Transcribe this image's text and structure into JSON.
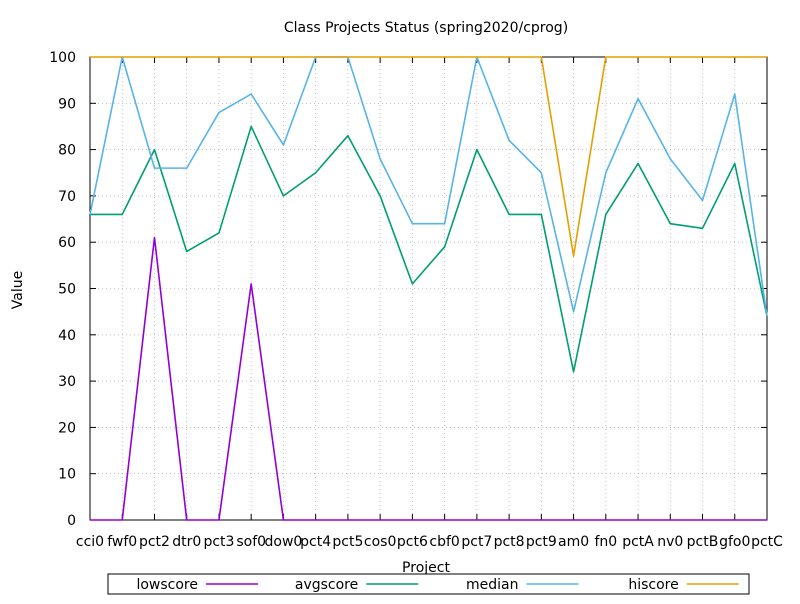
{
  "chart_data": {
    "type": "line",
    "title": "Class Projects Status (spring2020/cprog)",
    "xlabel": "Project",
    "ylabel": "Value",
    "ylim": [
      0,
      100
    ],
    "yticks": [
      0,
      10,
      20,
      30,
      40,
      50,
      60,
      70,
      80,
      90,
      100
    ],
    "grid": true,
    "legend_position": "bottom",
    "categories": [
      "cci0",
      "fwf0",
      "pct2",
      "dtr0",
      "pct3",
      "sof0",
      "dow0",
      "pct4",
      "pct5",
      "cos0",
      "pct6",
      "cbf0",
      "pct7",
      "pct8",
      "pct9",
      "am0",
      "fn0",
      "pctA",
      "nv0",
      "pctB",
      "gfo0",
      "pctC"
    ],
    "series": [
      {
        "name": "lowscore",
        "color": "#9400d3",
        "values": [
          0,
          0,
          61,
          0,
          0,
          51,
          0,
          0,
          0,
          0,
          0,
          0,
          0,
          0,
          0,
          0,
          0,
          0,
          0,
          0,
          0,
          0
        ]
      },
      {
        "name": "avgscore",
        "color": "#009e73",
        "values": [
          66,
          66,
          80,
          58,
          62,
          85,
          70,
          75,
          83,
          70,
          51,
          59,
          80,
          66,
          66,
          32,
          66,
          77,
          64,
          63,
          77,
          44
        ]
      },
      {
        "name": "median",
        "color": "#56b4e9",
        "values": [
          66,
          100,
          76,
          76,
          88,
          92,
          81,
          100,
          100,
          78,
          64,
          64,
          100,
          82,
          75,
          45,
          75,
          91,
          78,
          69,
          92,
          44
        ]
      },
      {
        "name": "hiscore",
        "color": "#e69f00",
        "values": [
          100,
          100,
          100,
          100,
          100,
          100,
          100,
          100,
          100,
          100,
          100,
          100,
          100,
          100,
          100,
          57,
          100,
          100,
          100,
          100,
          100,
          100
        ]
      }
    ]
  }
}
